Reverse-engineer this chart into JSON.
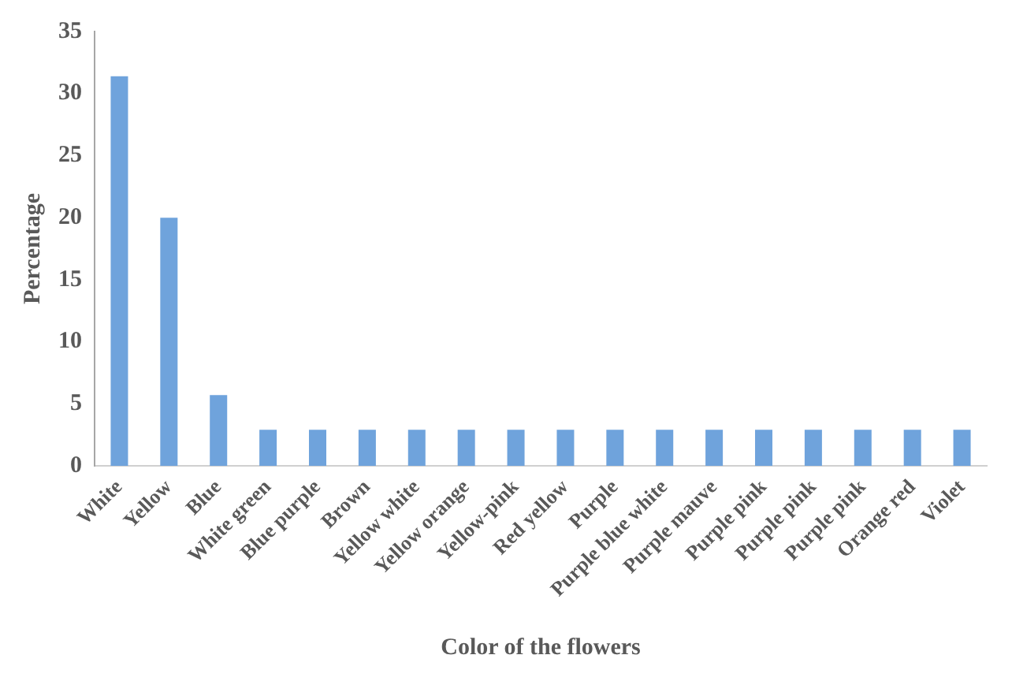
{
  "chart_data": {
    "type": "bar",
    "xlabel": "Color of the flowers",
    "ylabel": "Percentage",
    "categories": [
      "White",
      "Yellow",
      "Blue",
      "White green",
      "Blue purple",
      "Brown",
      "Yellow white",
      "Yellow orange",
      "Yellow-pink",
      "Red yellow",
      "Purple",
      "Purple blue white",
      "Purple mauve",
      "Purple pink",
      "Purple pink",
      "Purple pink",
      "Orange red",
      "Violet"
    ],
    "values": [
      31.4,
      20,
      5.7,
      2.9,
      2.9,
      2.9,
      2.9,
      2.9,
      2.9,
      2.9,
      2.9,
      2.9,
      2.9,
      2.9,
      2.9,
      2.9,
      2.9,
      2.9
    ],
    "color": "#6fa3dc",
    "ylim": [
      0,
      35
    ],
    "yticks": [
      0,
      5,
      10,
      15,
      20,
      25,
      30,
      35
    ],
    "grid": false,
    "legend": false
  }
}
